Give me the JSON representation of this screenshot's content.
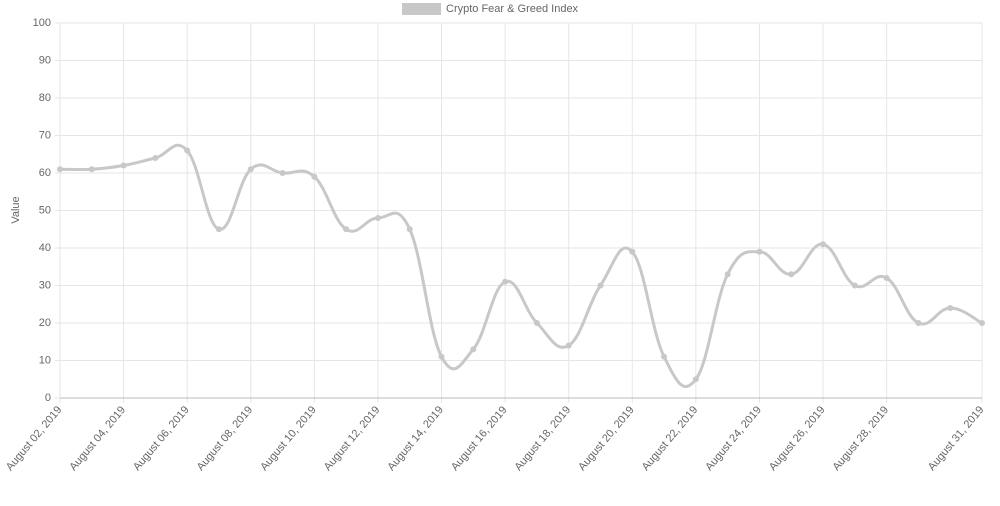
{
  "chart_data": {
    "type": "line",
    "y_label": "Value",
    "categories": [
      "August 02, 2019",
      null,
      "August 04, 2019",
      null,
      "August 06, 2019",
      null,
      "August 08, 2019",
      null,
      "August 10, 2019",
      null,
      "August 12, 2019",
      null,
      "August 14, 2019",
      null,
      "August 16, 2019",
      null,
      "August 18, 2019",
      null,
      "August 20, 2019",
      null,
      "August 22, 2019",
      null,
      "August 24, 2019",
      null,
      "August 26, 2019",
      null,
      "August 28, 2019",
      null,
      null,
      "August 31, 2019"
    ],
    "series": [
      {
        "name": "Crypto Fear & Greed Index",
        "color": "#c8c8c8",
        "values": [
          61,
          61,
          62,
          64,
          66,
          45,
          61,
          60,
          59,
          45,
          48,
          45,
          11,
          13,
          31,
          20,
          14,
          30,
          39,
          11,
          5,
          33,
          39,
          33,
          41,
          30,
          32,
          20,
          24,
          20
        ]
      }
    ],
    "ylim": [
      0,
      100
    ],
    "yticks": [
      0,
      10,
      20,
      30,
      40,
      50,
      60,
      70,
      80,
      90,
      100
    ],
    "grid": true,
    "legend": "top"
  }
}
